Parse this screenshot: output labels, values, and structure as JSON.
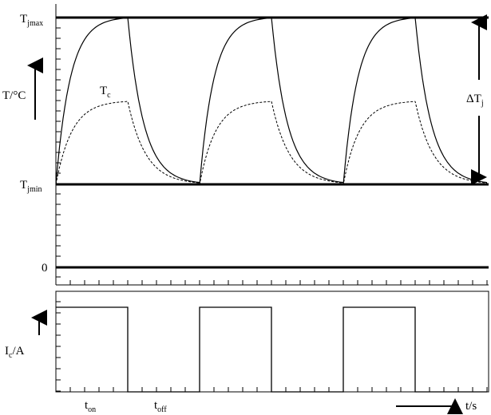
{
  "labels": {
    "tjmax_main": "T",
    "tjmax_sub": "jmax",
    "tjmin_main": "T",
    "tjmin_sub": "jmin",
    "zero": "0",
    "y_upper": "T/°C",
    "tc_main": "T",
    "tc_sub": "c",
    "delta_main": "ΔT",
    "delta_sub": "j",
    "y_lower_a": "I",
    "y_lower_sub": "c",
    "y_lower_b": "/A",
    "ton_main": "t",
    "ton_sub": "on",
    "toff_main": "t",
    "toff_sub": "off",
    "time": "t/s"
  },
  "chart_data": {
    "type": "line",
    "description_of_axes": "upper panel temperature vs time; lower panel collector current vs time",
    "cycles": 3,
    "phases": [
      "on",
      "off"
    ],
    "series": [
      {
        "name": "T_j",
        "style": "solid",
        "levels": [
          "Tjmin",
          "Tjmax"
        ]
      },
      {
        "name": "T_c",
        "style": "dashed"
      },
      {
        "name": "I_c",
        "style": "solid",
        "waveform": "square"
      }
    ],
    "reference_lines": [
      "Tjmax",
      "Tjmin",
      "0"
    ]
  }
}
